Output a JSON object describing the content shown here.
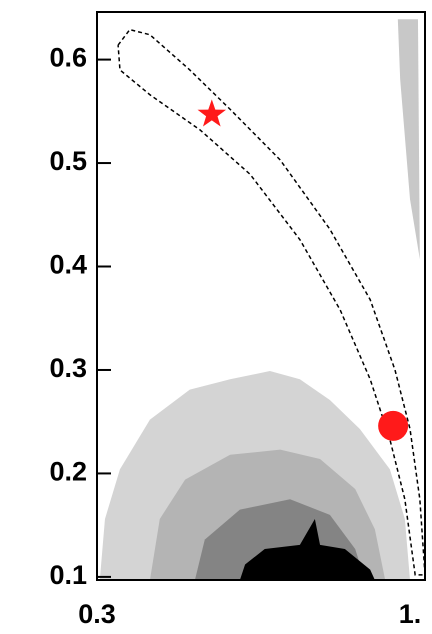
{
  "chart_data": {
    "type": "contour",
    "xlim": [
      0.3,
      1.0
    ],
    "ylim": [
      0.097,
      0.646
    ],
    "xticks": [
      0.3,
      {
        "value": 1,
        "label": "1."
      }
    ],
    "yticks": [
      0.1,
      0.2,
      0.3,
      0.4,
      0.5,
      0.6
    ],
    "regions": [
      {
        "color": "#d4d4d4",
        "x": [
          0.306,
          0.317,
          0.349,
          0.413,
          0.498,
          0.584,
          0.669,
          0.733,
          0.797,
          0.861,
          0.925,
          0.957,
          0.968
        ],
        "y": [
          0.097,
          0.156,
          0.204,
          0.252,
          0.281,
          0.291,
          0.299,
          0.291,
          0.271,
          0.243,
          0.204,
          0.156,
          0.097
        ]
      },
      {
        "color": "#b4b4b4",
        "x": [
          0.413,
          0.434,
          0.488,
          0.584,
          0.691,
          0.776,
          0.851,
          0.893,
          0.915
        ],
        "y": [
          0.097,
          0.156,
          0.194,
          0.218,
          0.223,
          0.214,
          0.185,
          0.146,
          0.097
        ]
      },
      {
        "color": "#848484",
        "x": [
          0.509,
          0.53,
          0.605,
          0.712,
          0.797,
          0.851,
          0.872
        ],
        "y": [
          0.097,
          0.136,
          0.165,
          0.175,
          0.16,
          0.127,
          0.097
        ]
      },
      {
        "color": "#000000",
        "x": [
          0.605,
          0.616,
          0.658,
          0.733,
          0.765,
          0.776,
          0.829,
          0.883,
          0.893
        ],
        "y": [
          0.097,
          0.112,
          0.127,
          0.131,
          0.156,
          0.131,
          0.127,
          0.107,
          0.097
        ]
      },
      {
        "color": "#c8c8c8",
        "x": [
          0.942,
          0.985,
          0.989,
          0.968,
          0.947
        ],
        "y": [
          0.639,
          0.639,
          0.407,
          0.465,
          0.581
        ]
      }
    ],
    "contours": [
      {
        "color": "#000000",
        "dashed": true,
        "x": [
          0.345,
          0.37,
          0.413,
          0.498,
          0.584,
          0.691,
          0.797,
          0.883,
          0.936,
          0.968,
          0.989,
          1.0,
          0.979,
          0.957,
          0.925,
          0.883,
          0.819,
          0.733,
          0.627,
          0.52,
          0.413,
          0.349,
          0.345
        ],
        "y": [
          0.614,
          0.629,
          0.624,
          0.59,
          0.552,
          0.503,
          0.436,
          0.368,
          0.3,
          0.243,
          0.175,
          0.102,
          0.102,
          0.175,
          0.233,
          0.291,
          0.358,
          0.426,
          0.489,
          0.532,
          0.566,
          0.59,
          0.614
        ]
      }
    ],
    "markers": [
      {
        "shape": "star",
        "color": "#ff1a1a",
        "x": 0.545,
        "y": 0.547
      },
      {
        "shape": "circle",
        "color": "#ff1a1a",
        "x": 0.932,
        "y": 0.246
      }
    ]
  }
}
